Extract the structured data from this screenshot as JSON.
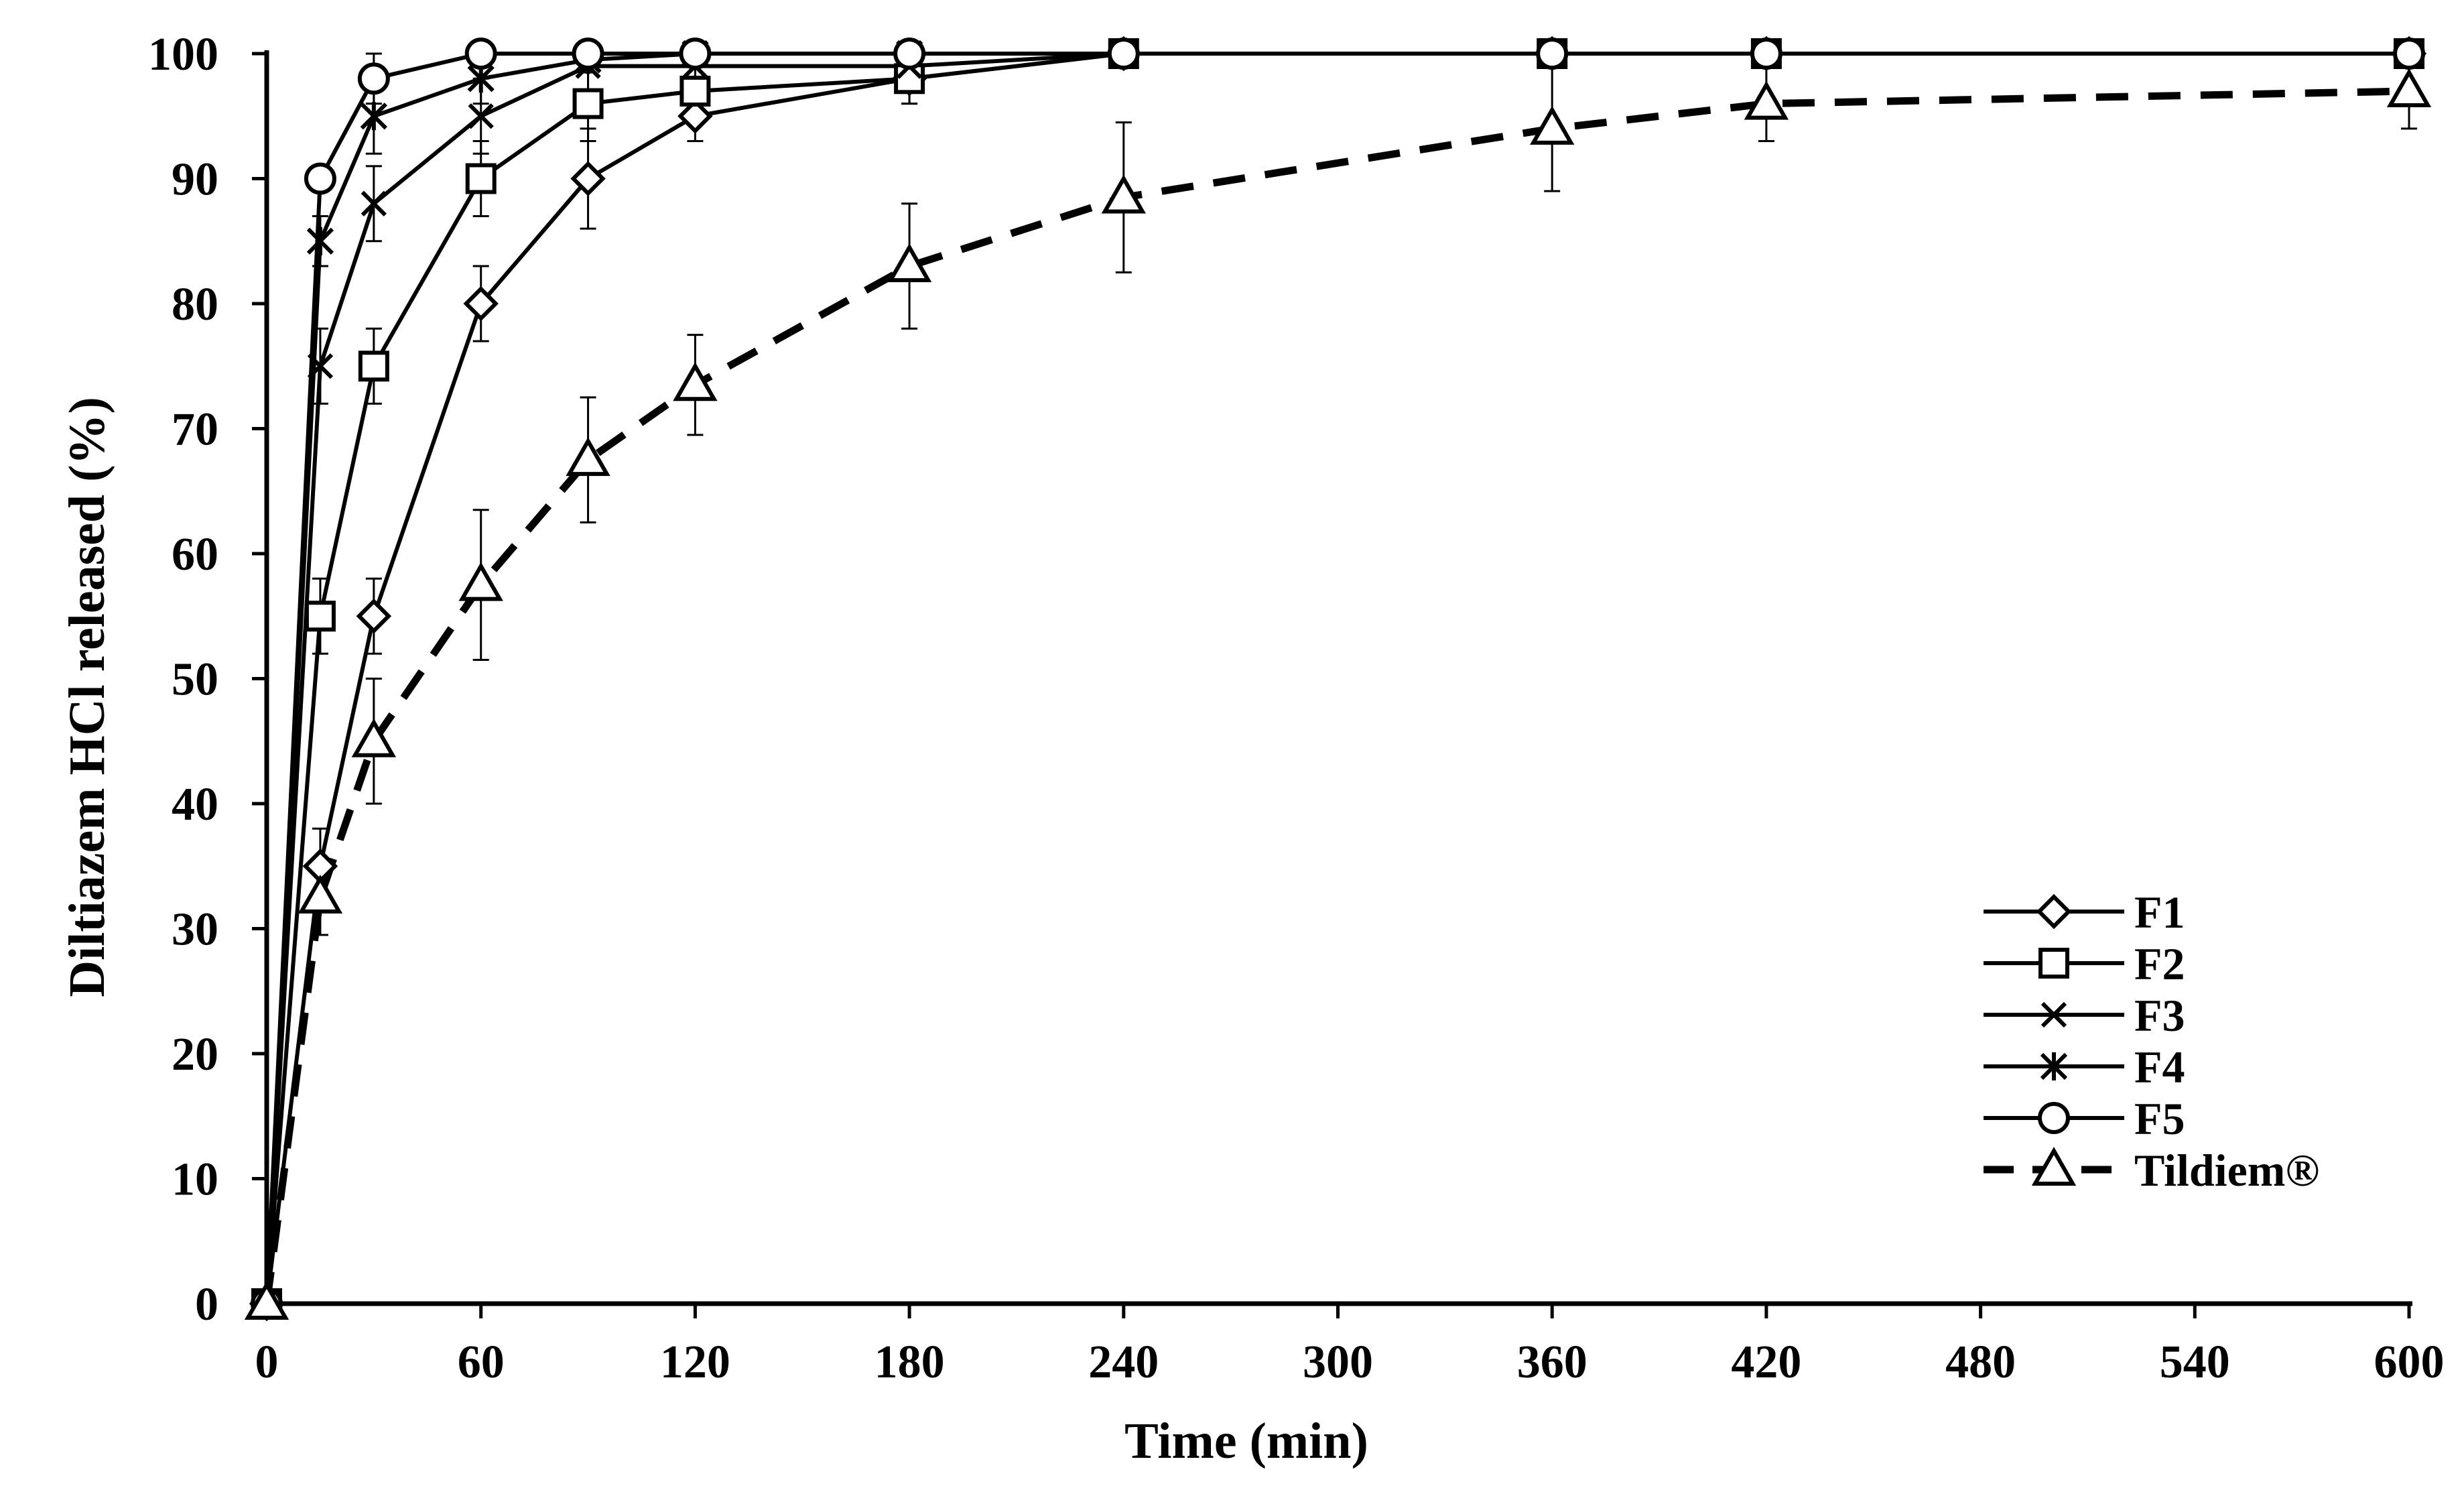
{
  "chart_data": {
    "type": "line",
    "title": "",
    "xlabel": "Time (min)",
    "ylabel": "Diltiazem HCl released (%)",
    "xlim": [
      0,
      600
    ],
    "ylim": [
      0,
      100
    ],
    "xticks": [
      0,
      60,
      120,
      180,
      240,
      300,
      360,
      420,
      480,
      540,
      600
    ],
    "yticks": [
      0,
      10,
      20,
      30,
      40,
      50,
      60,
      70,
      80,
      90,
      100
    ],
    "grid": false,
    "legend_position": "lower-right",
    "series": [
      {
        "name": "F1",
        "marker": "diamond",
        "dash": false,
        "x": [
          0,
          15,
          30,
          60,
          90,
          120,
          180,
          240,
          360,
          420,
          600
        ],
        "y": [
          0,
          35,
          55,
          80,
          90,
          95,
          98,
          100,
          100,
          100,
          100
        ],
        "err": [
          0,
          3,
          3,
          3,
          4,
          2,
          2,
          0,
          0,
          0,
          0
        ]
      },
      {
        "name": "F2",
        "marker": "square",
        "dash": false,
        "x": [
          0,
          15,
          30,
          60,
          90,
          120,
          180,
          240,
          360,
          420,
          600
        ],
        "y": [
          0,
          55,
          75,
          90,
          96,
          97,
          98,
          100,
          100,
          100,
          100
        ],
        "err": [
          0,
          3,
          3,
          3,
          3,
          2,
          2,
          0,
          0,
          0,
          0
        ]
      },
      {
        "name": "F3",
        "marker": "x",
        "dash": false,
        "x": [
          0,
          15,
          30,
          60,
          90,
          120,
          180,
          240,
          360,
          420,
          600
        ],
        "y": [
          0,
          75,
          88,
          95,
          99,
          99,
          99,
          100,
          100,
          100,
          100
        ],
        "err": [
          0,
          3,
          3,
          3,
          2,
          1,
          1,
          0,
          0,
          0,
          0
        ]
      },
      {
        "name": "F4",
        "marker": "asterisk",
        "dash": false,
        "x": [
          0,
          15,
          30,
          60,
          90,
          120,
          180,
          240,
          360,
          420,
          600
        ],
        "y": [
          0,
          85,
          95,
          98,
          99.5,
          100,
          100,
          100,
          100,
          100,
          100
        ],
        "err": [
          0,
          2,
          3,
          2,
          1,
          0,
          0,
          0,
          0,
          0,
          0
        ]
      },
      {
        "name": "F5",
        "marker": "circle",
        "dash": false,
        "x": [
          0,
          15,
          30,
          60,
          90,
          120,
          180,
          240,
          360,
          420,
          600
        ],
        "y": [
          0,
          90,
          98,
          100,
          100,
          100,
          100,
          100,
          100,
          100,
          100
        ],
        "err": [
          0,
          1,
          2,
          0,
          0,
          0,
          0,
          0,
          0,
          0,
          0
        ]
      },
      {
        "name": "Tildiem®",
        "marker": "triangle",
        "dash": true,
        "x": [
          0,
          15,
          30,
          60,
          90,
          120,
          180,
          240,
          360,
          420,
          600
        ],
        "y": [
          0,
          32.5,
          45,
          57.5,
          67.5,
          73.5,
          83,
          88.5,
          94,
          96,
          97
        ],
        "err": [
          0,
          3,
          5,
          6,
          5,
          4,
          5,
          6,
          5,
          3,
          3
        ]
      }
    ]
  }
}
